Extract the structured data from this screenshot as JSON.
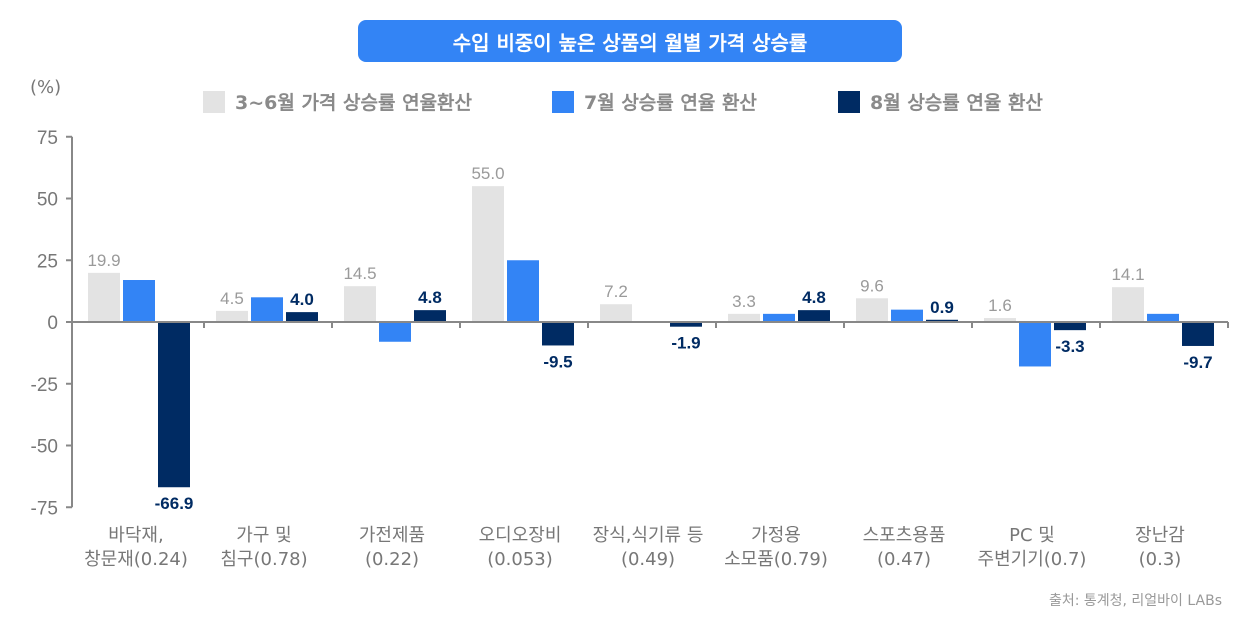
{
  "title": "수입 비중이 높은 상품의 월별 가격 상승률",
  "unit": "(%)",
  "source": "출처: 통계청, 리얼바이 LABs",
  "colors": {
    "s1": "#e3e3e3",
    "s2": "#3384f5",
    "s3": "#002b63",
    "label1": "#9a9a9a",
    "label3": "#002b63",
    "axis": "#888888",
    "tick": "#777777"
  },
  "chart_data": {
    "type": "bar",
    "title": "수입 비중이 높은 상품의 월별 가격 상승률",
    "ylabel": "(%)",
    "ylim": [
      -75,
      75
    ],
    "yticks": [
      75,
      50,
      25,
      0,
      -25,
      -50,
      -75
    ],
    "legend_position": "top",
    "categories": [
      [
        "바닥재,",
        "창문재(0.24)"
      ],
      [
        "가구 및",
        "침구(0.78)"
      ],
      [
        "가전제품",
        "(0.22)"
      ],
      [
        "오디오장비",
        "(0.053)"
      ],
      [
        "장식,식기류 등",
        "(0.49)"
      ],
      [
        "가정용",
        "소모품(0.79)"
      ],
      [
        "스포츠용품",
        "(0.47)"
      ],
      [
        "PC 및",
        "주변기기(0.7)"
      ],
      [
        "장난감",
        "(0.3)"
      ]
    ],
    "series": [
      {
        "name": "3~6월 가격 상승률 연율환산",
        "values": [
          19.9,
          4.5,
          14.5,
          55.0,
          7.2,
          3.3,
          9.6,
          1.6,
          14.1
        ],
        "labeled": true
      },
      {
        "name": "7월 상승률 연율 환산",
        "values": [
          17,
          10,
          -8,
          25,
          0,
          3.3,
          5,
          -18,
          3.3
        ],
        "labeled": false
      },
      {
        "name": "8월 상승률 연율 환산",
        "values": [
          -66.9,
          4.0,
          4.8,
          -9.5,
          -1.9,
          4.8,
          0.9,
          -3.3,
          -9.7
        ],
        "labeled": true
      }
    ]
  }
}
